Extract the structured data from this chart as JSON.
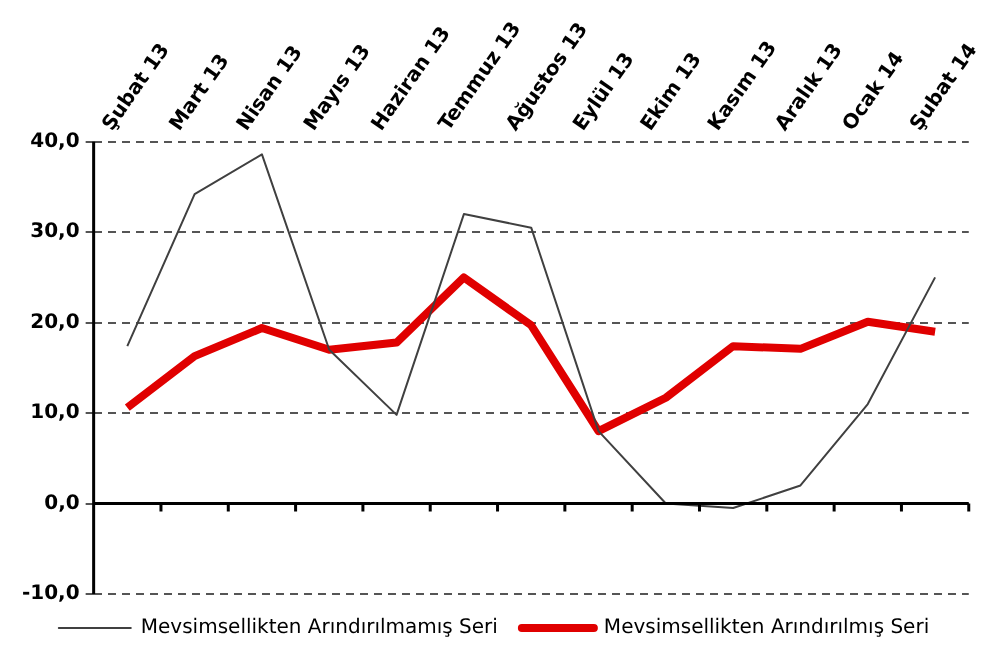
{
  "chart_data": {
    "type": "line",
    "categories": [
      "Şubat 13",
      "Mart 13",
      "Nisan 13",
      "Mayıs 13",
      "Haziran 13",
      "Temmuz 13",
      "Ağustos 13",
      "Eylül 13",
      "Ekim 13",
      "Kasım 13",
      "Aralık 13",
      "Ocak 14",
      "Şubat 14"
    ],
    "series": [
      {
        "name": "Mevsimsellikten Arındırılmamış Seri",
        "color": "#404040",
        "values": [
          17.4,
          34.2,
          38.6,
          17.0,
          9.8,
          32.0,
          30.5,
          8.0,
          0.0,
          -0.5,
          2.0,
          11.0,
          25.0
        ]
      },
      {
        "name": "Mevsimsellikten Arındırılmış Seri",
        "color": "#e00000",
        "values": [
          10.6,
          16.3,
          19.4,
          17.0,
          17.8,
          25.0,
          19.7,
          8.0,
          11.7,
          17.4,
          17.1,
          20.1,
          19.0
        ]
      }
    ],
    "ylim": [
      -10,
      40
    ],
    "yticks": [
      {
        "value": -10,
        "label": "-10,0"
      },
      {
        "value": 0,
        "label": "0,0"
      },
      {
        "value": 10,
        "label": "10,0"
      },
      {
        "value": 20,
        "label": "20,0"
      },
      {
        "value": 30,
        "label": "30,0"
      },
      {
        "value": 40,
        "label": "40,0"
      }
    ],
    "grid": "y",
    "legend": "bottom",
    "marker": "none",
    "line_style": "solid"
  }
}
